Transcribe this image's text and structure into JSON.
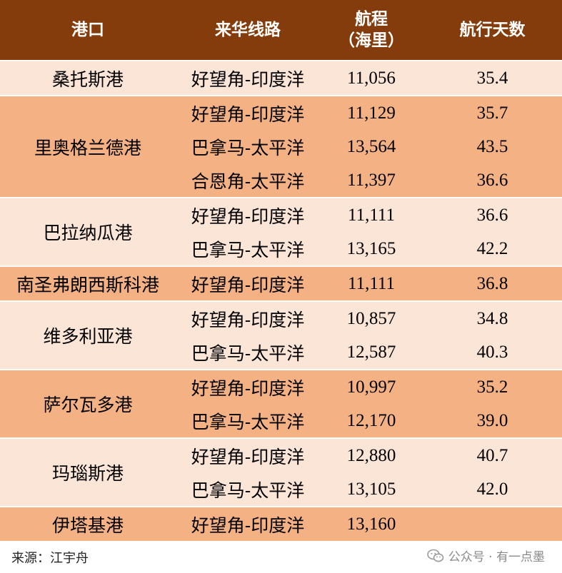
{
  "table": {
    "headers": {
      "port": "港口",
      "route": "来华线路",
      "distance_line1": "航程",
      "distance_line2": "（海里）",
      "days": "航行天数"
    },
    "groups": [
      {
        "port": "桑托斯港",
        "shade": "light",
        "rows": [
          {
            "route": "好望角-印度洋",
            "distance": "11,056",
            "days": "35.4"
          }
        ]
      },
      {
        "port": "里奥格兰德港",
        "shade": "dark",
        "rows": [
          {
            "route": "好望角-印度洋",
            "distance": "11,129",
            "days": "35.7"
          },
          {
            "route": "巴拿马-太平洋",
            "distance": "13,564",
            "days": "43.5"
          },
          {
            "route": "合恩角-太平洋",
            "distance": "11,397",
            "days": "36.6"
          }
        ]
      },
      {
        "port": "巴拉纳瓜港",
        "shade": "light",
        "rows": [
          {
            "route": "好望角-印度洋",
            "distance": "11,111",
            "days": "36.6"
          },
          {
            "route": "巴拿马-太平洋",
            "distance": "13,165",
            "days": "42.2"
          }
        ]
      },
      {
        "port": "南圣弗朗西斯科港",
        "shade": "dark",
        "rows": [
          {
            "route": "好望角-印度洋",
            "distance": "11,111",
            "days": "36.8"
          }
        ]
      },
      {
        "port": "维多利亚港",
        "shade": "light",
        "rows": [
          {
            "route": "好望角-印度洋",
            "distance": "10,857",
            "days": "34.8"
          },
          {
            "route": "巴拿马-太平洋",
            "distance": "12,587",
            "days": "40.3"
          }
        ]
      },
      {
        "port": "萨尔瓦多港",
        "shade": "dark",
        "rows": [
          {
            "route": "好望角-印度洋",
            "distance": "10,997",
            "days": "35.2"
          },
          {
            "route": "巴拿马-太平洋",
            "distance": "12,170",
            "days": "39.0"
          }
        ]
      },
      {
        "port": "玛瑙斯港",
        "shade": "light",
        "rows": [
          {
            "route": "好望角-印度洋",
            "distance": "12,880",
            "days": "40.7"
          },
          {
            "route": "巴拿马-太平洋",
            "distance": "13,105",
            "days": "42.0"
          }
        ]
      },
      {
        "port": "伊塔基港",
        "shade": "dark",
        "rows": [
          {
            "route": "好望角-印度洋",
            "distance": "13,160",
            "days": ""
          }
        ]
      }
    ]
  },
  "footer": {
    "source": "来源：江宇舟",
    "watermark": "公众号 · 有一点墨",
    "watermark_icon": "wechat-icon"
  },
  "colors": {
    "header_bg": "#843c0c",
    "row_light": "#fbe5d6",
    "row_dark": "#f4b183"
  }
}
